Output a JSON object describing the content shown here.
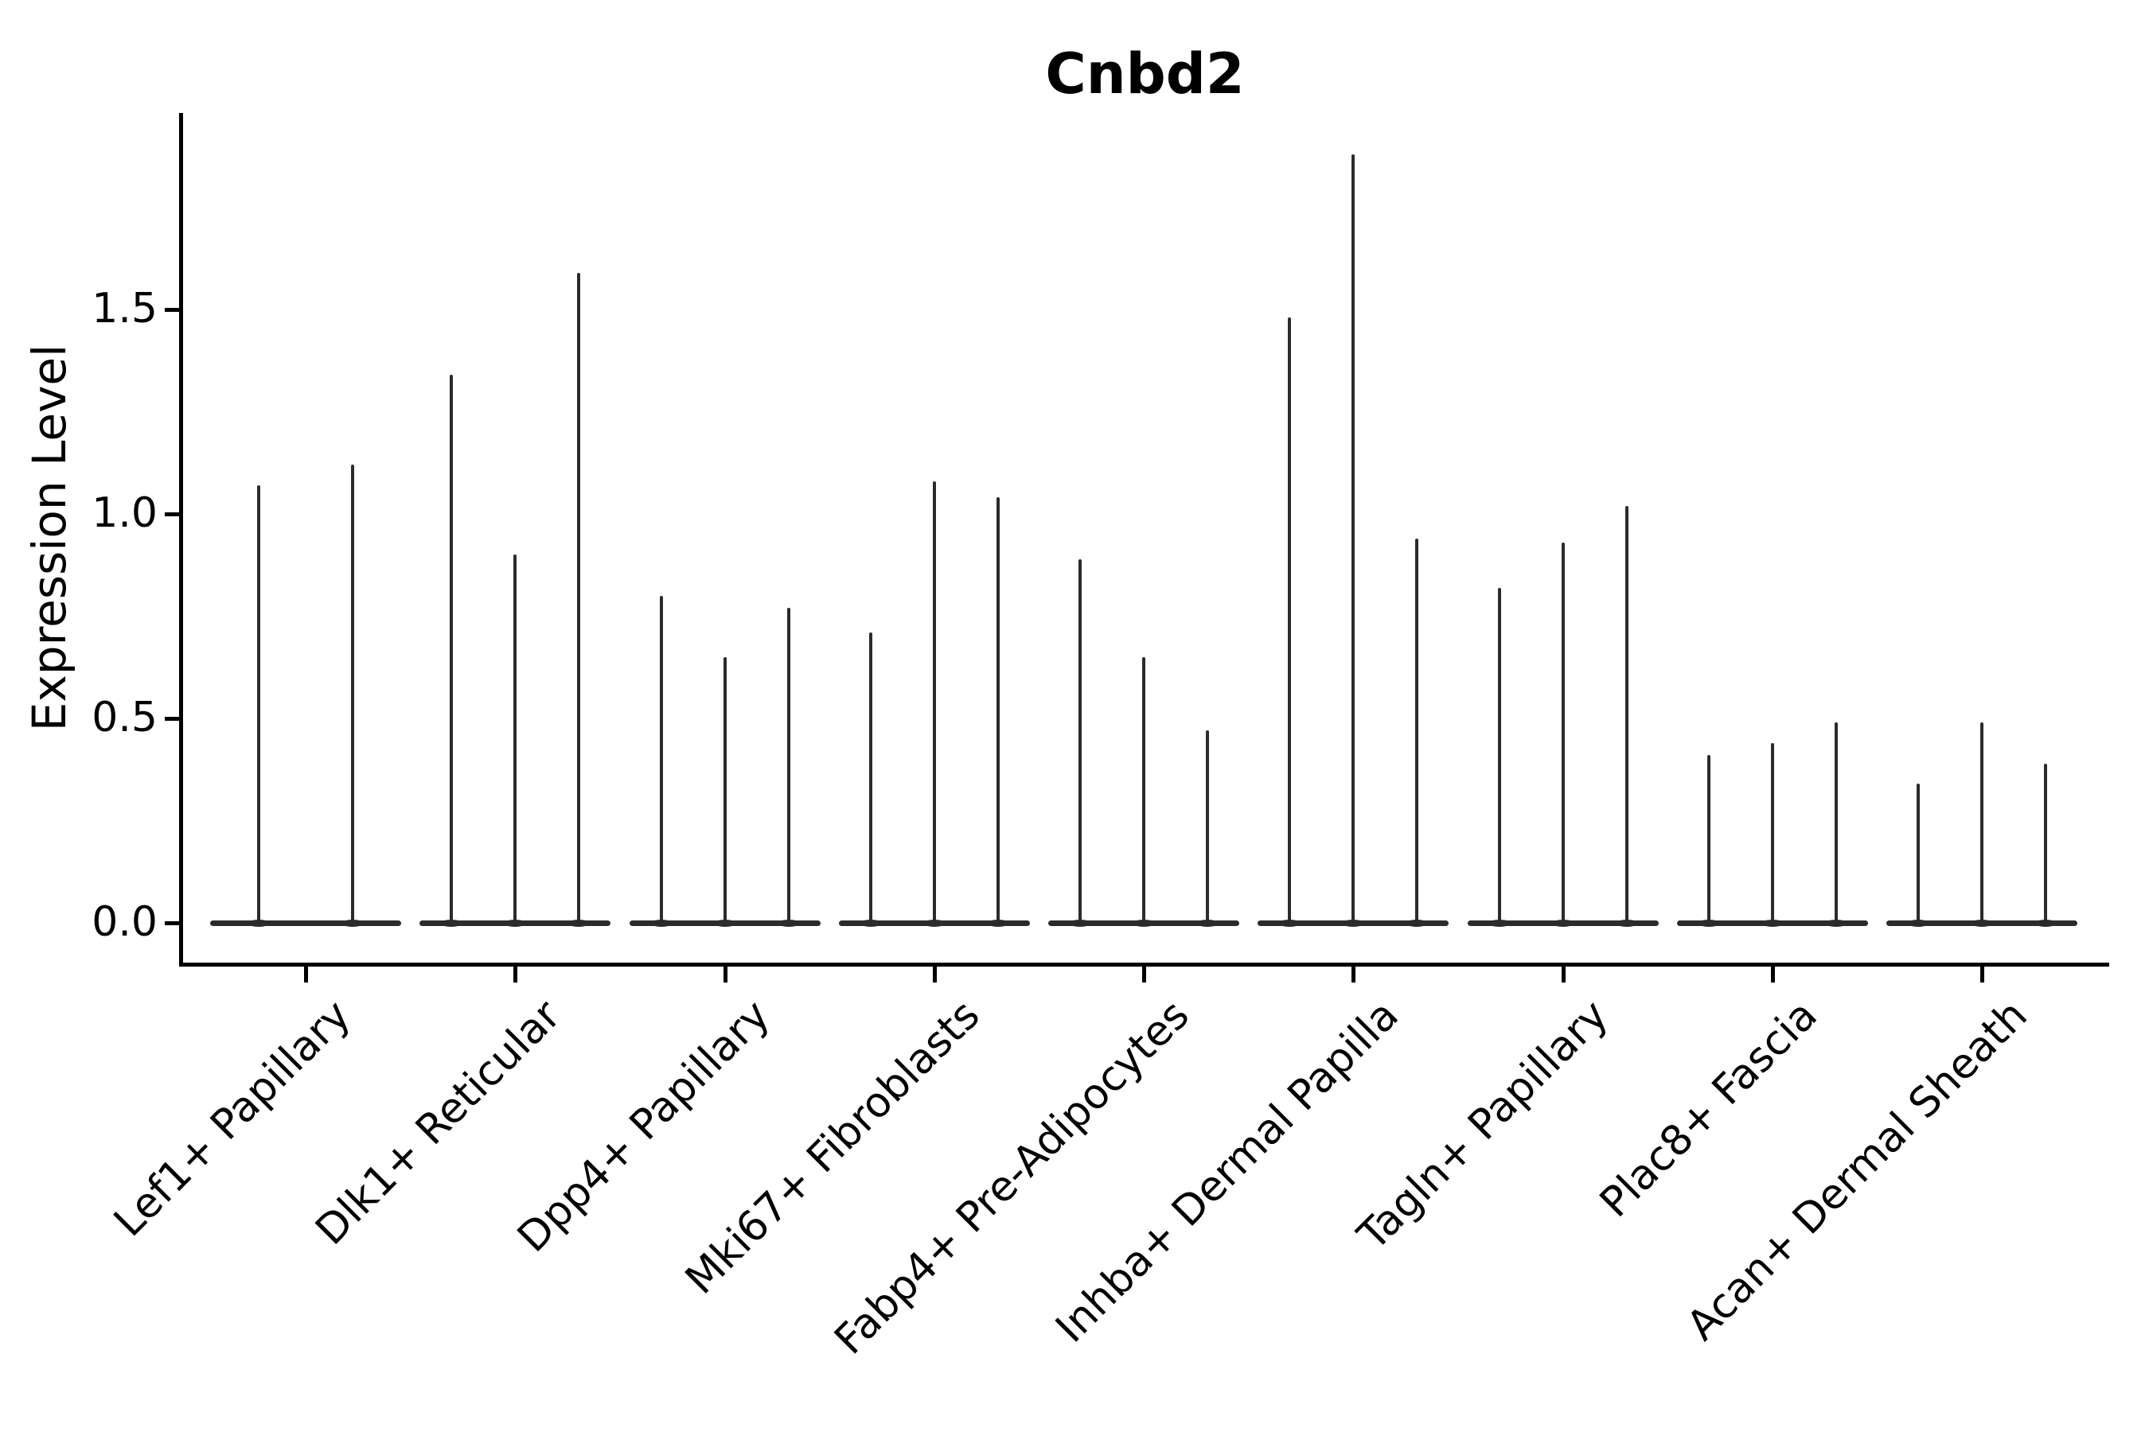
{
  "figure": {
    "background_color": "#ffffff",
    "violin_color": "#2b2b2b",
    "axis_color": "#000000"
  },
  "chart_data": {
    "type": "violin",
    "title": "Cnbd2",
    "xlabel": "",
    "ylabel": "Expression Level",
    "grid": false,
    "legend_position": "none",
    "x_tick_rotation": 45,
    "ylim": [
      -0.1,
      1.98
    ],
    "ytick_labels": [
      "0.0",
      "0.5",
      "1.0",
      "1.5"
    ],
    "ytick_values": [
      0.0,
      0.5,
      1.0,
      1.5
    ],
    "categories": [
      "Lef1+ Papillary",
      "Dlk1+ Reticular",
      "Dpp4+ Papillary",
      "Mki67+ Fibroblasts",
      "Fabp4+ Pre-Adipocytes",
      "Inhba+ Dermal Papilla",
      "Tagln+ Papillary",
      "Plac8+ Fascia",
      "Acan+ Dermal Sheath"
    ],
    "series": [
      {
        "name": "Lef1+ Papillary",
        "violin_peak_heights": [
          1.07,
          1.12
        ]
      },
      {
        "name": "Dlk1+ Reticular",
        "violin_peak_heights": [
          1.34,
          0.9,
          1.59
        ]
      },
      {
        "name": "Dpp4+ Papillary",
        "violin_peak_heights": [
          0.8,
          0.65,
          0.77
        ]
      },
      {
        "name": "Mki67+ Fibroblasts",
        "violin_peak_heights": [
          0.71,
          1.08,
          1.04
        ]
      },
      {
        "name": "Fabp4+ Pre-Adipocytes",
        "violin_peak_heights": [
          0.89,
          0.65,
          0.47
        ]
      },
      {
        "name": "Inhba+ Dermal Papilla",
        "violin_peak_heights": [
          1.48,
          1.88,
          0.94
        ]
      },
      {
        "name": "Tagln+ Papillary",
        "violin_peak_heights": [
          0.82,
          0.93,
          1.02
        ]
      },
      {
        "name": "Plac8+ Fascia",
        "violin_peak_heights": [
          0.41,
          0.44,
          0.49
        ]
      },
      {
        "name": "Acan+ Dermal Sheath",
        "violin_peak_heights": [
          0.34,
          0.49,
          0.39
        ]
      }
    ]
  }
}
